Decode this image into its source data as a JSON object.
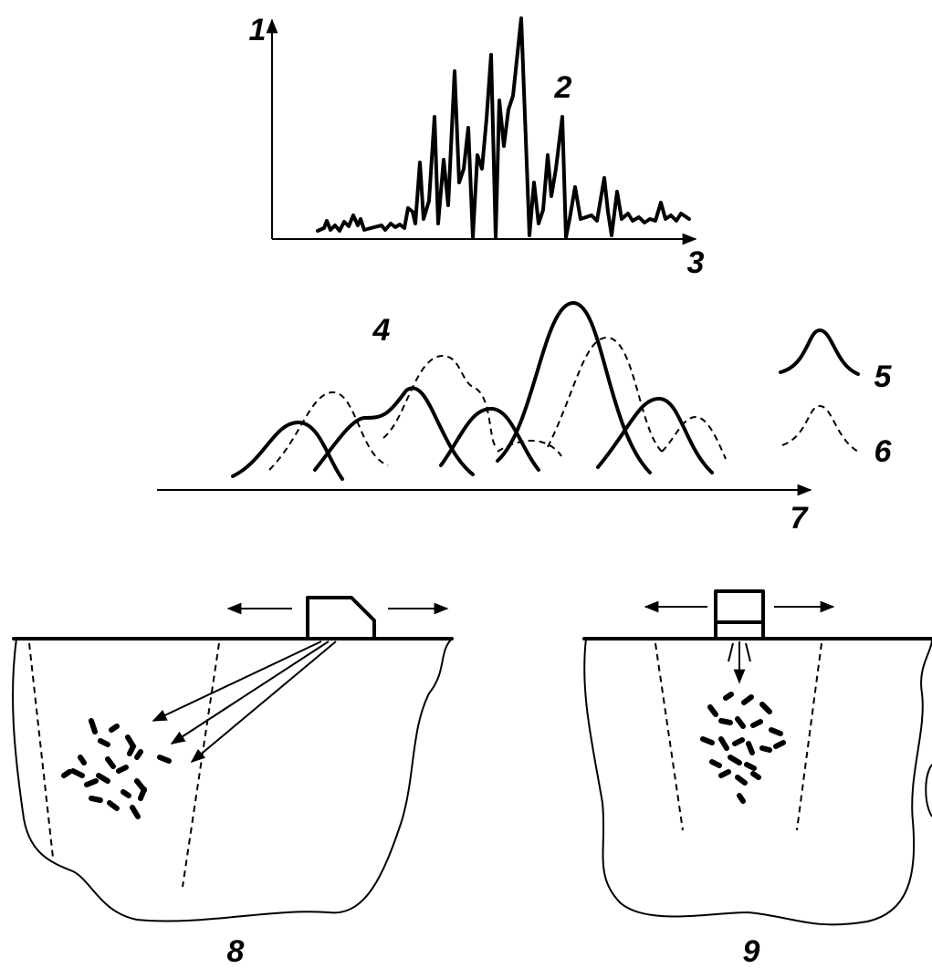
{
  "labels": {
    "axis_y": "1",
    "signal": "2",
    "axis_x": "3",
    "curves": "4",
    "legend_solid": "5",
    "legend_dashed": "6",
    "axis_bottom": "7",
    "method_a": "8",
    "method_b": "9"
  }
}
